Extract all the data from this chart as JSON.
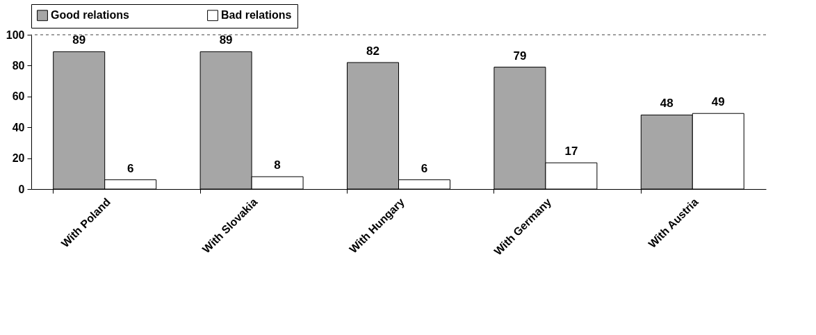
{
  "chart_data": {
    "type": "bar",
    "categories": [
      "With Poland",
      "With Slovakia",
      "With Hungary",
      "With Germany",
      "With Austria"
    ],
    "series": [
      {
        "name": "Good relations",
        "color": "#a6a6a6",
        "values": [
          89,
          89,
          82,
          79,
          48
        ]
      },
      {
        "name": "Bad relations",
        "color": "#ffffff",
        "values": [
          6,
          8,
          6,
          17,
          49
        ]
      }
    ],
    "ylim": [
      0,
      100
    ],
    "yticks": [
      0,
      20,
      40,
      60,
      80,
      100
    ],
    "ref_lines": [
      {
        "axis": "y",
        "value": 100,
        "color": "#808080",
        "line_style": "dashed"
      }
    ],
    "data_labels": true,
    "legend": "top",
    "grid": false
  }
}
